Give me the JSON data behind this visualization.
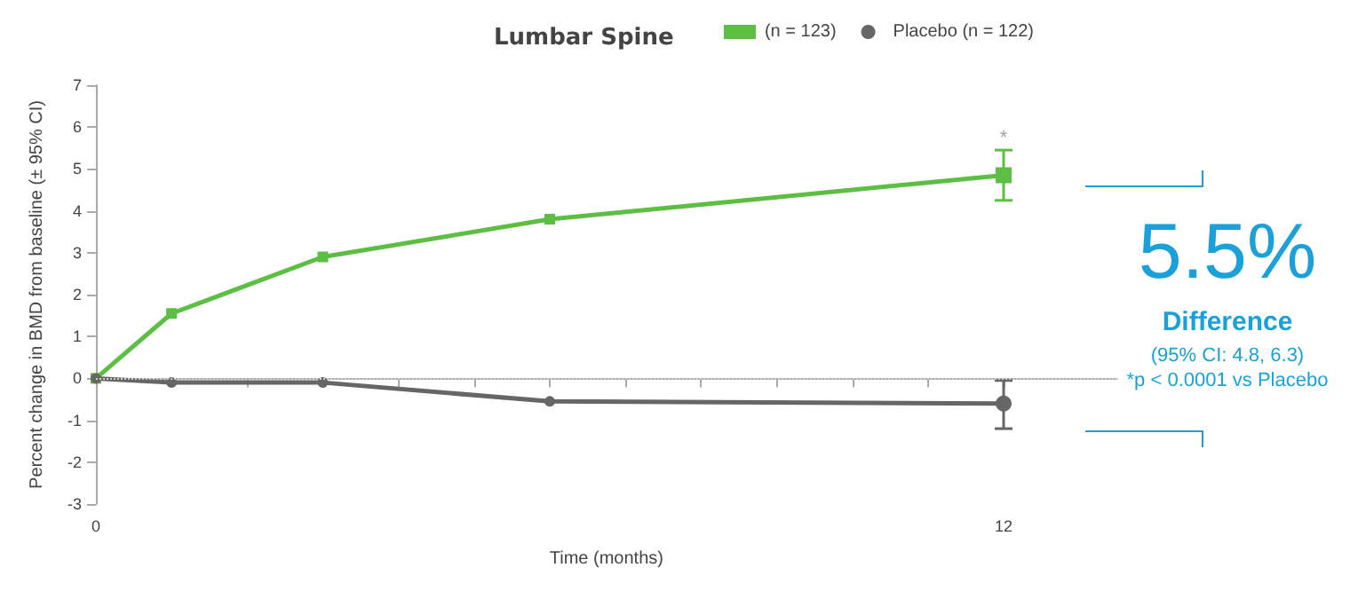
{
  "chart_data": {
    "type": "line",
    "title": "Lumbar Spine",
    "xlabel": "Time (months)",
    "ylabel": "Percent change in BMD from baseline (± 95% CI)",
    "x": [
      0,
      1,
      3,
      6,
      12
    ],
    "series": [
      {
        "name": "(n = 123)",
        "color": "#5cbf43",
        "marker": "square",
        "values": [
          0,
          1.55,
          2.9,
          3.8,
          4.85
        ],
        "errors": [
          null,
          null,
          null,
          null,
          [
            4.25,
            5.45
          ]
        ]
      },
      {
        "name": "Placebo (n = 122)",
        "color": "#666666",
        "marker": "circle",
        "values": [
          0,
          -0.1,
          -0.1,
          -0.55,
          -0.6
        ],
        "errors": [
          null,
          null,
          null,
          null,
          [
            -1.2,
            -0.05
          ]
        ]
      }
    ],
    "xlim": [
      0,
      13.5
    ],
    "xticks": [
      0,
      {
        "value": 1,
        "label": null
      },
      {
        "value": 2,
        "label": null
      },
      {
        "value": 3,
        "label": null
      },
      {
        "value": 4,
        "label": null
      },
      {
        "value": 5,
        "label": null
      },
      {
        "value": 6,
        "label": null
      },
      {
        "value": 7,
        "label": null
      },
      {
        "value": 8,
        "label": null
      },
      {
        "value": 9,
        "label": null
      },
      {
        "value": 10,
        "label": null
      },
      {
        "value": 11,
        "label": null
      },
      12
    ],
    "ylim": [
      -3,
      7
    ],
    "yticks": [
      -3,
      -2,
      -1,
      0,
      1,
      2,
      3,
      4,
      5,
      6,
      7
    ],
    "ref_lines": [
      {
        "axis": "y",
        "value": 0,
        "color": "#cccccc",
        "line_style": "dotted"
      }
    ],
    "annotations": [
      {
        "text": "*",
        "x": 12,
        "y": 5.45
      },
      "5.5%",
      "Difference",
      "(95% CI: 4.8, 6.3)",
      "*p < 0.0001 vs Placebo"
    ],
    "legend": "top right",
    "grid": false,
    "line_style": "solid"
  }
}
